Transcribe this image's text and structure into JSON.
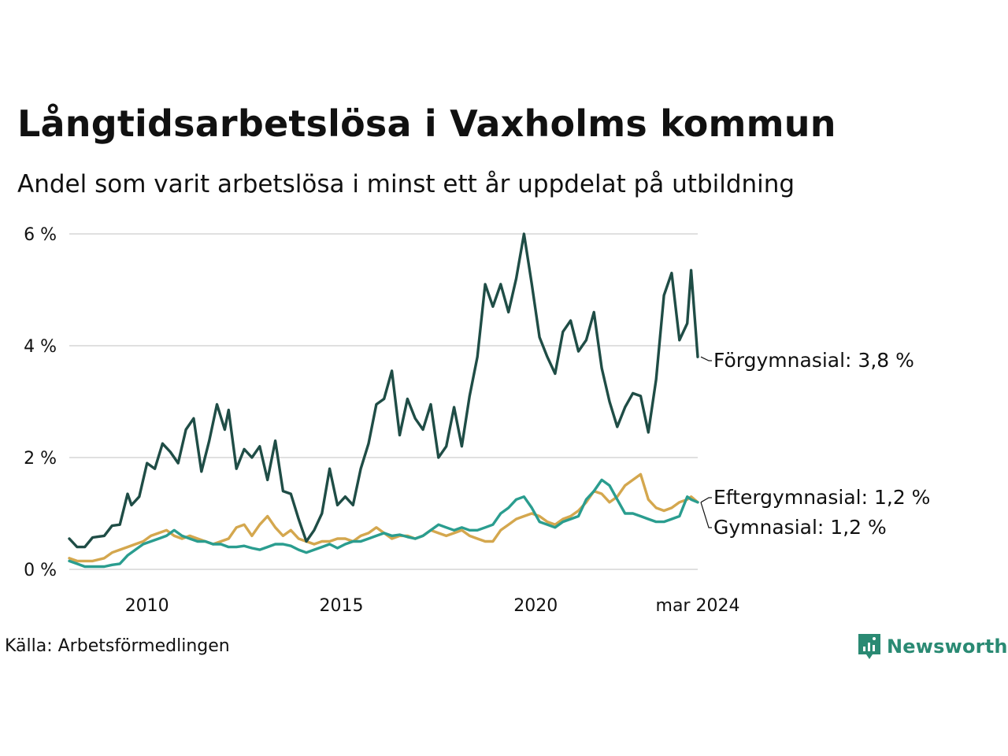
{
  "title": "Långtidsarbetslösa i Vaxholms kommun",
  "subtitle": "Andel som varit arbetslösa i minst ett år uppdelat på utbildning",
  "source": "Källa: Arbetsförmedlingen",
  "brand": "Newsworthy",
  "colors": {
    "forgymnasial": "#1f4d46",
    "gymnasial": "#2a9d8f",
    "eftergymnasial": "#d4a74e",
    "grid": "#e0e0e0",
    "brand": "#2a8a73"
  },
  "chart_data": {
    "type": "line",
    "title": "Långtidsarbetslösa i Vaxholms kommun",
    "xlabel": "",
    "ylabel": "",
    "ylim": [
      0,
      6
    ],
    "yticks": [
      0,
      2,
      4,
      6
    ],
    "ytick_labels": [
      "0 %",
      "2 %",
      "4 %",
      "6 %"
    ],
    "xticks": [
      2010,
      2015,
      2020,
      2024.17
    ],
    "xtick_labels": [
      "2010",
      "2015",
      "2020",
      "mar 2024"
    ],
    "series": [
      {
        "name": "Förgymnasial",
        "label": "Förgymnasial: 3,8 %",
        "color": "#1f4d46",
        "x": [
          2008.0,
          2008.2,
          2008.4,
          2008.6,
          2008.9,
          2009.1,
          2009.3,
          2009.5,
          2009.6,
          2009.8,
          2010.0,
          2010.2,
          2010.4,
          2010.6,
          2010.8,
          2011.0,
          2011.2,
          2011.4,
          2011.6,
          2011.8,
          2012.0,
          2012.1,
          2012.3,
          2012.5,
          2012.7,
          2012.9,
          2013.1,
          2013.3,
          2013.5,
          2013.7,
          2013.9,
          2014.1,
          2014.3,
          2014.5,
          2014.7,
          2014.9,
          2015.1,
          2015.3,
          2015.5,
          2015.7,
          2015.9,
          2016.1,
          2016.3,
          2016.5,
          2016.7,
          2016.9,
          2017.1,
          2017.3,
          2017.5,
          2017.7,
          2017.9,
          2018.1,
          2018.3,
          2018.5,
          2018.7,
          2018.9,
          2019.1,
          2019.3,
          2019.5,
          2019.7,
          2019.9,
          2020.1,
          2020.3,
          2020.5,
          2020.7,
          2020.9,
          2021.1,
          2021.3,
          2021.5,
          2021.7,
          2021.9,
          2022.1,
          2022.3,
          2022.5,
          2022.7,
          2022.9,
          2023.1,
          2023.3,
          2023.5,
          2023.7,
          2023.9,
          2024.0,
          2024.17
        ],
        "y": [
          0.55,
          0.4,
          0.4,
          0.57,
          0.6,
          0.78,
          0.8,
          1.35,
          1.15,
          1.3,
          1.9,
          1.8,
          2.25,
          2.1,
          1.9,
          2.5,
          2.7,
          1.75,
          2.3,
          2.95,
          2.5,
          2.85,
          1.8,
          2.15,
          2.0,
          2.2,
          1.6,
          2.3,
          1.4,
          1.35,
          0.9,
          0.5,
          0.7,
          1.0,
          1.8,
          1.15,
          1.3,
          1.15,
          1.8,
          2.25,
          2.95,
          3.05,
          3.55,
          2.4,
          3.05,
          2.7,
          2.5,
          2.95,
          2.0,
          2.2,
          2.9,
          2.2,
          3.1,
          3.8,
          5.1,
          4.7,
          5.1,
          4.6,
          5.2,
          6.0,
          5.1,
          4.15,
          3.8,
          3.5,
          4.25,
          4.45,
          3.9,
          4.1,
          4.6,
          3.6,
          3.0,
          2.55,
          2.9,
          3.15,
          3.1,
          2.45,
          3.4,
          4.9,
          5.3,
          4.1,
          4.4,
          5.35,
          3.8
        ]
      },
      {
        "name": "Gymnasial",
        "label": "Gymnasial: 1,2 %",
        "color": "#2a9d8f",
        "x": [
          2008.0,
          2008.2,
          2008.4,
          2008.6,
          2008.9,
          2009.1,
          2009.3,
          2009.5,
          2009.7,
          2009.9,
          2010.1,
          2010.3,
          2010.5,
          2010.7,
          2010.9,
          2011.1,
          2011.3,
          2011.5,
          2011.7,
          2011.9,
          2012.1,
          2012.3,
          2012.5,
          2012.7,
          2012.9,
          2013.1,
          2013.3,
          2013.5,
          2013.7,
          2013.9,
          2014.1,
          2014.3,
          2014.5,
          2014.7,
          2014.9,
          2015.1,
          2015.3,
          2015.5,
          2015.7,
          2015.9,
          2016.1,
          2016.3,
          2016.5,
          2016.7,
          2016.9,
          2017.1,
          2017.3,
          2017.5,
          2017.7,
          2017.9,
          2018.1,
          2018.3,
          2018.5,
          2018.7,
          2018.9,
          2019.1,
          2019.3,
          2019.5,
          2019.7,
          2019.9,
          2020.1,
          2020.3,
          2020.5,
          2020.7,
          2020.9,
          2021.1,
          2021.3,
          2021.5,
          2021.7,
          2021.9,
          2022.1,
          2022.3,
          2022.5,
          2022.7,
          2022.9,
          2023.1,
          2023.3,
          2023.5,
          2023.7,
          2023.9,
          2024.0,
          2024.17
        ],
        "y": [
          0.15,
          0.1,
          0.05,
          0.05,
          0.05,
          0.08,
          0.1,
          0.25,
          0.35,
          0.45,
          0.5,
          0.55,
          0.6,
          0.7,
          0.6,
          0.55,
          0.5,
          0.5,
          0.45,
          0.45,
          0.4,
          0.4,
          0.42,
          0.38,
          0.35,
          0.4,
          0.45,
          0.45,
          0.42,
          0.35,
          0.3,
          0.35,
          0.4,
          0.45,
          0.38,
          0.45,
          0.5,
          0.5,
          0.55,
          0.6,
          0.65,
          0.6,
          0.62,
          0.58,
          0.55,
          0.6,
          0.7,
          0.8,
          0.75,
          0.7,
          0.75,
          0.7,
          0.7,
          0.75,
          0.8,
          1.0,
          1.1,
          1.25,
          1.3,
          1.1,
          0.85,
          0.8,
          0.75,
          0.85,
          0.9,
          0.95,
          1.25,
          1.4,
          1.6,
          1.5,
          1.25,
          1.0,
          1.0,
          0.95,
          0.9,
          0.85,
          0.85,
          0.9,
          0.95,
          1.3,
          1.25,
          1.2
        ]
      },
      {
        "name": "Eftergymnasial",
        "label": "Eftergymnasial: 1,2 %",
        "color": "#d4a74e",
        "x": [
          2008.0,
          2008.2,
          2008.4,
          2008.6,
          2008.9,
          2009.1,
          2009.3,
          2009.5,
          2009.7,
          2009.9,
          2010.1,
          2010.3,
          2010.5,
          2010.7,
          2010.9,
          2011.1,
          2011.3,
          2011.5,
          2011.7,
          2011.9,
          2012.1,
          2012.3,
          2012.5,
          2012.7,
          2012.9,
          2013.1,
          2013.3,
          2013.5,
          2013.7,
          2013.9,
          2014.1,
          2014.3,
          2014.5,
          2014.7,
          2014.9,
          2015.1,
          2015.3,
          2015.5,
          2015.7,
          2015.9,
          2016.1,
          2016.3,
          2016.5,
          2016.7,
          2016.9,
          2017.1,
          2017.3,
          2017.5,
          2017.7,
          2017.9,
          2018.1,
          2018.3,
          2018.5,
          2018.7,
          2018.9,
          2019.1,
          2019.3,
          2019.5,
          2019.7,
          2019.9,
          2020.1,
          2020.3,
          2020.5,
          2020.7,
          2020.9,
          2021.1,
          2021.3,
          2021.5,
          2021.7,
          2021.9,
          2022.1,
          2022.3,
          2022.5,
          2022.7,
          2022.9,
          2023.1,
          2023.3,
          2023.5,
          2023.7,
          2023.9,
          2024.0,
          2024.17
        ],
        "y": [
          0.2,
          0.15,
          0.15,
          0.15,
          0.2,
          0.3,
          0.35,
          0.4,
          0.45,
          0.5,
          0.6,
          0.65,
          0.7,
          0.6,
          0.55,
          0.6,
          0.55,
          0.5,
          0.45,
          0.5,
          0.55,
          0.75,
          0.8,
          0.6,
          0.8,
          0.95,
          0.75,
          0.6,
          0.7,
          0.55,
          0.5,
          0.45,
          0.5,
          0.5,
          0.55,
          0.55,
          0.5,
          0.6,
          0.65,
          0.75,
          0.65,
          0.55,
          0.6,
          0.6,
          0.55,
          0.6,
          0.7,
          0.65,
          0.6,
          0.65,
          0.7,
          0.6,
          0.55,
          0.5,
          0.5,
          0.7,
          0.8,
          0.9,
          0.95,
          1.0,
          0.95,
          0.85,
          0.8,
          0.9,
          0.95,
          1.05,
          1.2,
          1.4,
          1.35,
          1.2,
          1.3,
          1.5,
          1.6,
          1.7,
          1.25,
          1.1,
          1.05,
          1.1,
          1.2,
          1.25,
          1.3,
          1.2
        ]
      }
    ]
  }
}
